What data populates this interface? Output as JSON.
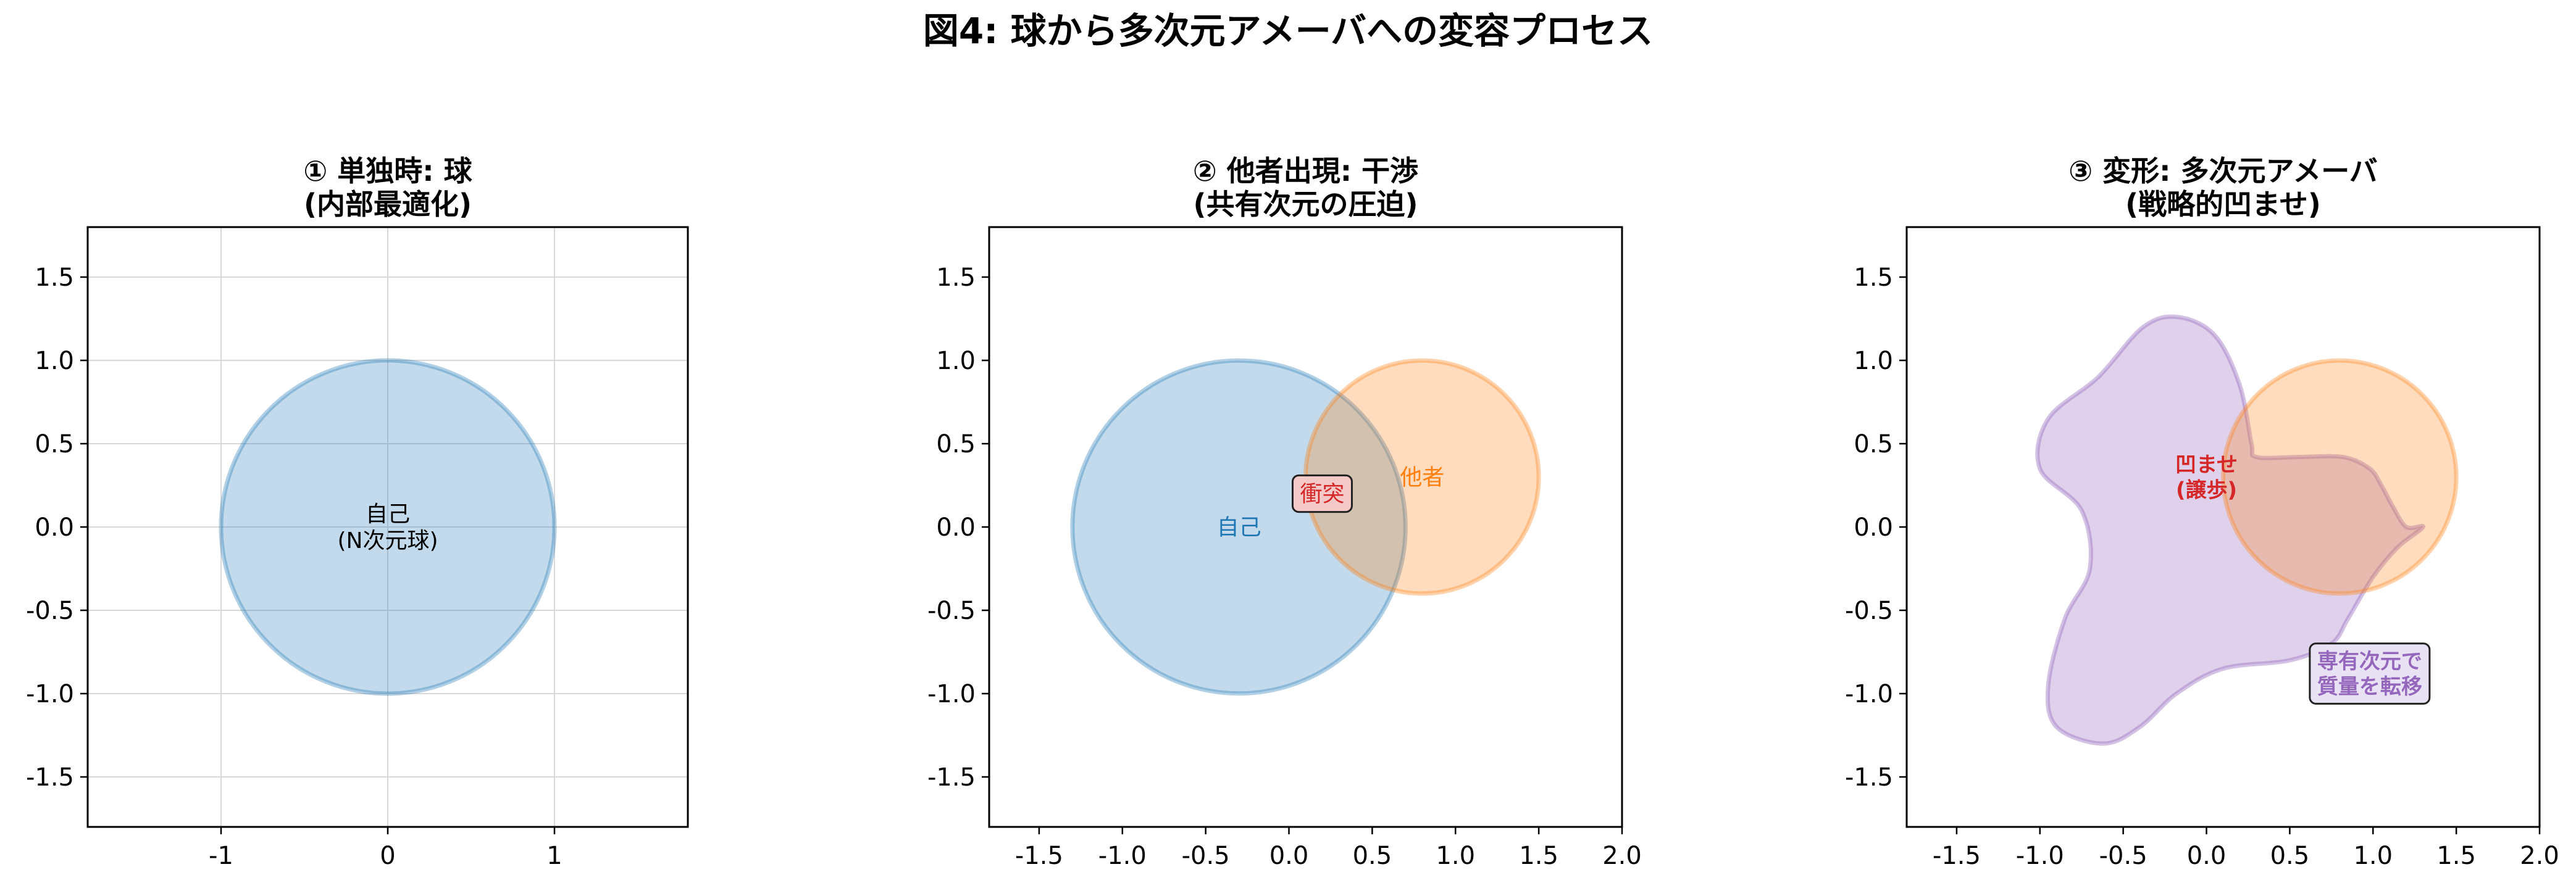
{
  "figure": {
    "suptitle": "図4: 球から多次元アメーバへの変容プロセス"
  },
  "colors": {
    "self": "#1f77b4",
    "other": "#ff7f0e",
    "amoeba": "#9467bd",
    "conflict": "#d62728",
    "grid": "#d8d8d8"
  },
  "chart_data": [
    {
      "type": "scatter",
      "title": "① 単独時: 球\n(内部最適化)",
      "xlim": [
        -1.8,
        1.8
      ],
      "ylim": [
        -1.8,
        1.8
      ],
      "xticks": [
        -1,
        0,
        1
      ],
      "xticklabels": [
        "-1",
        "0",
        "1"
      ],
      "yticks": [
        1.5,
        1.0,
        0.5,
        0.0,
        -0.5,
        -1.0,
        -1.5
      ],
      "yticklabels": [
        "1.5",
        "1.0",
        "0.5",
        "0.0",
        "-0.5",
        "-1.0",
        "-1.5"
      ],
      "grid": true,
      "shapes": [
        {
          "kind": "circle",
          "cx": 0,
          "cy": 0,
          "r": 1.0,
          "color": "self"
        }
      ],
      "annotations": [
        {
          "text": "自己\n(N次元球)",
          "x": 0.0,
          "y": 0.0,
          "color": "#000000",
          "box": false,
          "bold": false
        }
      ]
    },
    {
      "type": "scatter",
      "title": "② 他者出現: 干渉\n(共有次元の圧迫)",
      "xlim": [
        -1.8,
        2.0
      ],
      "ylim": [
        -1.8,
        1.8
      ],
      "xticks": [
        -1.5,
        -1.0,
        -0.5,
        0.0,
        0.5,
        1.0,
        1.5,
        2.0
      ],
      "xticklabels": [
        "-1.5",
        "-1.0",
        "-0.5",
        "0.0",
        "0.5",
        "1.0",
        "1.5",
        "2.0"
      ],
      "yticks": [
        1.5,
        1.0,
        0.5,
        0.0,
        -0.5,
        -1.0,
        -1.5
      ],
      "yticklabels": [
        "1.5",
        "1.0",
        "0.5",
        "0.0",
        "-0.5",
        "-1.0",
        "-1.5"
      ],
      "grid": false,
      "shapes": [
        {
          "kind": "circle",
          "cx": -0.3,
          "cy": 0,
          "r": 1.0,
          "color": "self"
        },
        {
          "kind": "circle",
          "cx": 0.8,
          "cy": 0.3,
          "r": 0.7,
          "color": "other"
        }
      ],
      "annotations": [
        {
          "text": "自己",
          "x": -0.3,
          "y": 0.0,
          "color": "self",
          "box": false,
          "bold": false
        },
        {
          "text": "他者",
          "x": 0.8,
          "y": 0.3,
          "color": "other",
          "box": false,
          "bold": false
        },
        {
          "text": "衝突",
          "x": 0.2,
          "y": 0.2,
          "color": "conflict",
          "box": true,
          "boxfill": "#f6c9c9",
          "bold": false
        }
      ]
    },
    {
      "type": "scatter",
      "title": "③ 変形: 多次元アメーバ\n(戦略的凹ませ)",
      "xlim": [
        -1.8,
        2.0
      ],
      "ylim": [
        -1.8,
        1.8
      ],
      "xticks": [
        -1.5,
        -1.0,
        -0.5,
        0.0,
        0.5,
        1.0,
        1.5,
        2.0
      ],
      "xticklabels": [
        "-1.5",
        "-1.0",
        "-0.5",
        "0.0",
        "0.5",
        "1.0",
        "1.5",
        "2.0"
      ],
      "yticks": [
        1.5,
        1.0,
        0.5,
        0.0,
        -0.5,
        -1.0,
        -1.5
      ],
      "yticklabels": [
        "1.5",
        "1.0",
        "0.5",
        "0.0",
        "-0.5",
        "-1.0",
        "-1.5"
      ],
      "grid": false,
      "shapes": [
        {
          "kind": "polygon",
          "color": "amoeba",
          "points": [
            [
              -0.17,
              1.26
            ],
            [
              0.05,
              1.15
            ],
            [
              0.2,
              0.85
            ],
            [
              0.27,
              0.5
            ],
            [
              0.3,
              0.42
            ],
            [
              0.55,
              0.42
            ],
            [
              0.82,
              0.42
            ],
            [
              0.98,
              0.35
            ],
            [
              1.05,
              0.25
            ],
            [
              1.12,
              0.12
            ],
            [
              1.2,
              0.0
            ],
            [
              1.3,
              0.0
            ],
            [
              1.15,
              -0.12
            ],
            [
              1.0,
              -0.3
            ],
            [
              0.85,
              -0.55
            ],
            [
              0.75,
              -0.7
            ],
            [
              0.5,
              -0.8
            ],
            [
              0.1,
              -0.85
            ],
            [
              -0.18,
              -1.0
            ],
            [
              -0.4,
              -1.2
            ],
            [
              -0.62,
              -1.3
            ],
            [
              -0.9,
              -1.2
            ],
            [
              -0.95,
              -0.95
            ],
            [
              -0.85,
              -0.55
            ],
            [
              -0.7,
              -0.25
            ],
            [
              -0.75,
              0.1
            ],
            [
              -1.0,
              0.35
            ],
            [
              -0.95,
              0.65
            ],
            [
              -0.65,
              0.9
            ],
            [
              -0.38,
              1.2
            ]
          ]
        },
        {
          "kind": "circle",
          "cx": 0.8,
          "cy": 0.3,
          "r": 0.7,
          "color": "other"
        }
      ],
      "annotations": [
        {
          "text": "凹ませ\n(譲歩)",
          "x": 0.0,
          "y": 0.3,
          "color": "conflict",
          "box": false,
          "bold": true
        },
        {
          "text": "専有次元で\n質量を転移",
          "x": 0.98,
          "y": -0.88,
          "color": "amoeba",
          "box": true,
          "boxfill": "#e9e2f4",
          "bold": true
        }
      ]
    }
  ]
}
